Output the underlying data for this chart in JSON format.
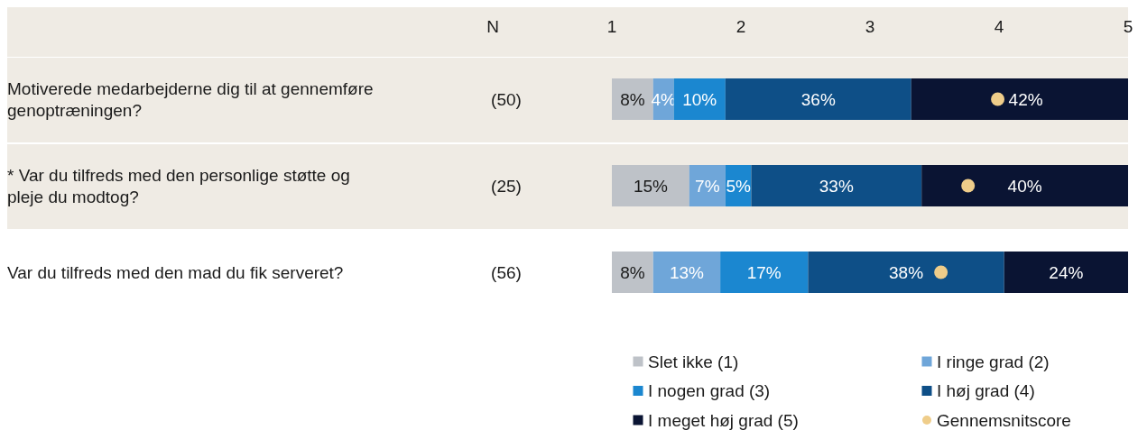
{
  "chart_data": {
    "type": "bar",
    "orientation": "horizontal",
    "stacked": true,
    "categories": [
      "Motiverede medarbejderne dig til at gennemføre genoptræningen?",
      "* Var du tilfreds med den personlige støtte og pleje du modtog?",
      "Var du tilfreds med den mad du fik serveret?"
    ],
    "xlim": [
      0,
      100
    ],
    "x2lim": [
      1,
      5
    ],
    "x2ticks": [
      1,
      2,
      3,
      4,
      5
    ],
    "series": [
      {
        "name": "Slet ikke (1)",
        "color": "#bec2c8",
        "values": [
          8,
          15,
          8
        ],
        "value_labels": [
          "8%",
          "15%",
          "8%"
        ]
      },
      {
        "name": "I ringe grad (2)",
        "color": "#6fa6d9",
        "values": [
          4,
          7,
          13
        ],
        "value_labels": [
          "4%",
          "7%",
          "13%"
        ]
      },
      {
        "name": "I nogen grad (3)",
        "color": "#1b87d0",
        "values": [
          10,
          5,
          17
        ],
        "value_labels": [
          "10%",
          "5%",
          "17%"
        ]
      },
      {
        "name": "I høj grad (4)",
        "color": "#0e4f87",
        "values": [
          36,
          33,
          38
        ],
        "value_labels": [
          "36%",
          "33%",
          "38%"
        ]
      },
      {
        "name": "I meget høj grad (5)",
        "color": "#0a1433",
        "values": [
          42,
          40,
          24
        ],
        "value_labels": [
          "42%",
          "40%",
          "24%"
        ]
      },
      {
        "name": "Gennemsnitscore",
        "type": "scatter",
        "axis": "x2",
        "marker": "circle",
        "color": "#efcd8a",
        "values": [
          3.99,
          3.76,
          3.55
        ]
      }
    ],
    "annotations": [
      "N",
      "(50)",
      "(25)",
      "(56)"
    ],
    "legend": "bottom",
    "grid": false
  }
}
